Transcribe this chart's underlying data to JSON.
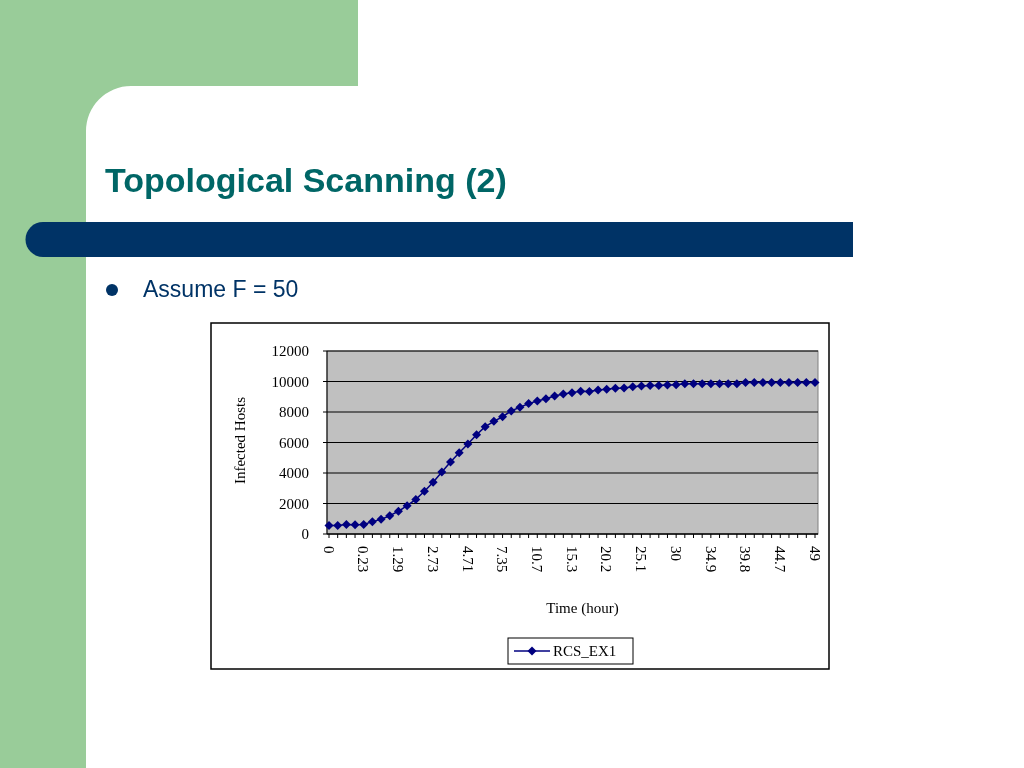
{
  "chart_data": {
    "type": "line",
    "title": "Topological Scanning (2)",
    "annotations": [
      "Assume F = 50"
    ],
    "xlabel": "Time (hour)",
    "ylabel": "Infected Hosts",
    "categories": [
      "0",
      null,
      null,
      null,
      "0.23",
      null,
      null,
      null,
      "1.29",
      null,
      null,
      null,
      "2.73",
      null,
      null,
      null,
      "4.71",
      null,
      null,
      null,
      "7.35",
      null,
      null,
      null,
      "10.7",
      null,
      null,
      null,
      "15.3",
      null,
      null,
      null,
      "20.2",
      null,
      null,
      null,
      "25.1",
      null,
      null,
      null,
      "30",
      null,
      null,
      null,
      "34.9",
      null,
      null,
      null,
      "39.8",
      null,
      null,
      null,
      "44.7",
      null,
      null,
      null,
      "49"
    ],
    "series": [
      {
        "name": "RCS_EX1",
        "color": "#000080",
        "values": [
          550,
          560,
          620,
          610,
          620,
          810,
          960,
          1200,
          1490,
          1860,
          2270,
          2800,
          3390,
          4070,
          4720,
          5330,
          5900,
          6510,
          7040,
          7390,
          7690,
          8070,
          8310,
          8550,
          8720,
          8870,
          9050,
          9180,
          9270,
          9360,
          9340,
          9440,
          9490,
          9550,
          9580,
          9660,
          9700,
          9740,
          9740,
          9770,
          9790,
          9860,
          9860,
          9860,
          9860,
          9860,
          9860,
          9860,
          9940,
          9940,
          9940,
          9940,
          9940,
          9940,
          9940,
          9940,
          9940
        ]
      }
    ],
    "ylim": [
      0,
      12000
    ],
    "yticks": [
      0,
      2000,
      4000,
      6000,
      8000,
      10000,
      12000
    ],
    "grid": "y",
    "legend": "bottom",
    "marker": "diamond"
  }
}
